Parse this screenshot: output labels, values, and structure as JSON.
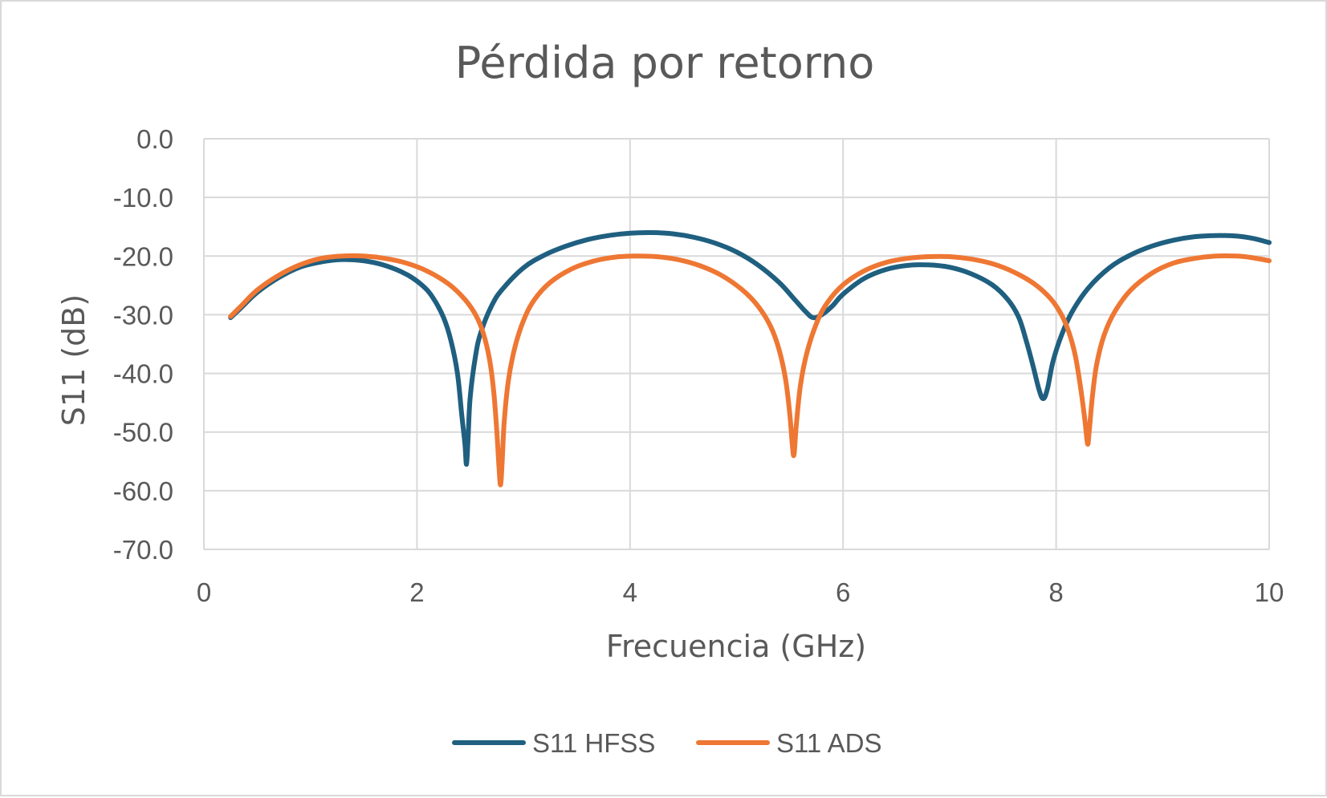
{
  "chart_data": {
    "type": "line",
    "title": "Pérdida por retorno",
    "xlabel": "Frecuencia (GHz)",
    "ylabel": "S11 (dB)",
    "xlim": [
      0,
      10
    ],
    "ylim": [
      -70,
      0
    ],
    "x_ticks": [
      {
        "value": 0,
        "label": "0"
      },
      {
        "value": 2,
        "label": "2"
      },
      {
        "value": 4,
        "label": "4"
      },
      {
        "value": 6,
        "label": "6"
      },
      {
        "value": 8,
        "label": "8"
      },
      {
        "value": 10,
        "label": "10"
      }
    ],
    "y_ticks": [
      {
        "value": 0,
        "label": "0.0"
      },
      {
        "value": -10,
        "label": "-10.0"
      },
      {
        "value": -20,
        "label": "-20.0"
      },
      {
        "value": -30,
        "label": "-30.0"
      },
      {
        "value": -40,
        "label": "-40.0"
      },
      {
        "value": -50,
        "label": "-50.0"
      },
      {
        "value": -60,
        "label": "-60.0"
      },
      {
        "value": -70,
        "label": "-70.0"
      }
    ],
    "grid": true,
    "legend_position": "bottom-center",
    "series": [
      {
        "name": "S11 HFSS",
        "color": "#1f5f80",
        "points": [
          [
            0.25,
            -30.5
          ],
          [
            0.35,
            -28.8
          ],
          [
            0.5,
            -26.2
          ],
          [
            0.7,
            -23.7
          ],
          [
            0.9,
            -21.9
          ],
          [
            1.1,
            -21.0
          ],
          [
            1.3,
            -20.6
          ],
          [
            1.5,
            -20.8
          ],
          [
            1.7,
            -21.6
          ],
          [
            1.9,
            -23.1
          ],
          [
            2.05,
            -25.0
          ],
          [
            2.15,
            -27.1
          ],
          [
            2.25,
            -30.5
          ],
          [
            2.32,
            -34.5
          ],
          [
            2.38,
            -40.0
          ],
          [
            2.42,
            -47.0
          ],
          [
            2.45,
            -52.0
          ],
          [
            2.465,
            -55.5
          ],
          [
            2.48,
            -51.0
          ],
          [
            2.5,
            -44.0
          ],
          [
            2.55,
            -37.0
          ],
          [
            2.6,
            -33.0
          ],
          [
            2.7,
            -28.5
          ],
          [
            2.8,
            -25.7
          ],
          [
            3.0,
            -22.0
          ],
          [
            3.2,
            -19.8
          ],
          [
            3.4,
            -18.3
          ],
          [
            3.6,
            -17.2
          ],
          [
            3.8,
            -16.5
          ],
          [
            4.0,
            -16.1
          ],
          [
            4.2,
            -16.0
          ],
          [
            4.4,
            -16.2
          ],
          [
            4.6,
            -16.8
          ],
          [
            4.8,
            -17.8
          ],
          [
            5.0,
            -19.3
          ],
          [
            5.2,
            -21.5
          ],
          [
            5.4,
            -24.5
          ],
          [
            5.55,
            -27.5
          ],
          [
            5.65,
            -29.5
          ],
          [
            5.72,
            -30.5
          ],
          [
            5.8,
            -30.0
          ],
          [
            5.9,
            -28.5
          ],
          [
            6.0,
            -26.5
          ],
          [
            6.2,
            -23.8
          ],
          [
            6.4,
            -22.3
          ],
          [
            6.6,
            -21.6
          ],
          [
            6.8,
            -21.5
          ],
          [
            7.0,
            -21.9
          ],
          [
            7.2,
            -23.0
          ],
          [
            7.4,
            -24.9
          ],
          [
            7.55,
            -27.5
          ],
          [
            7.65,
            -30.5
          ],
          [
            7.72,
            -34.5
          ],
          [
            7.78,
            -38.5
          ],
          [
            7.84,
            -42.8
          ],
          [
            7.88,
            -44.3
          ],
          [
            7.92,
            -42.5
          ],
          [
            7.97,
            -38.0
          ],
          [
            8.05,
            -33.5
          ],
          [
            8.15,
            -29.5
          ],
          [
            8.3,
            -25.5
          ],
          [
            8.5,
            -22.0
          ],
          [
            8.7,
            -19.8
          ],
          [
            8.9,
            -18.3
          ],
          [
            9.1,
            -17.3
          ],
          [
            9.3,
            -16.7
          ],
          [
            9.5,
            -16.5
          ],
          [
            9.7,
            -16.6
          ],
          [
            9.85,
            -17.0
          ],
          [
            10.0,
            -17.7
          ]
        ]
      },
      {
        "name": "S11 ADS",
        "color": "#ee7733",
        "points": [
          [
            0.25,
            -30.3
          ],
          [
            0.35,
            -28.5
          ],
          [
            0.5,
            -25.8
          ],
          [
            0.7,
            -23.3
          ],
          [
            0.9,
            -21.5
          ],
          [
            1.1,
            -20.4
          ],
          [
            1.3,
            -20.0
          ],
          [
            1.5,
            -20.0
          ],
          [
            1.7,
            -20.4
          ],
          [
            1.9,
            -21.2
          ],
          [
            2.1,
            -22.6
          ],
          [
            2.3,
            -24.8
          ],
          [
            2.45,
            -27.4
          ],
          [
            2.55,
            -30.0
          ],
          [
            2.62,
            -33.0
          ],
          [
            2.68,
            -37.5
          ],
          [
            2.72,
            -43.0
          ],
          [
            2.75,
            -50.0
          ],
          [
            2.77,
            -56.0
          ],
          [
            2.785,
            -59.0
          ],
          [
            2.8,
            -55.0
          ],
          [
            2.82,
            -48.0
          ],
          [
            2.86,
            -41.0
          ],
          [
            2.92,
            -35.5
          ],
          [
            3.0,
            -31.0
          ],
          [
            3.1,
            -27.5
          ],
          [
            3.25,
            -24.5
          ],
          [
            3.45,
            -22.2
          ],
          [
            3.65,
            -20.9
          ],
          [
            3.85,
            -20.2
          ],
          [
            4.05,
            -20.0
          ],
          [
            4.25,
            -20.1
          ],
          [
            4.45,
            -20.6
          ],
          [
            4.65,
            -21.6
          ],
          [
            4.85,
            -23.2
          ],
          [
            5.05,
            -25.7
          ],
          [
            5.2,
            -28.5
          ],
          [
            5.32,
            -32.0
          ],
          [
            5.4,
            -36.0
          ],
          [
            5.46,
            -41.0
          ],
          [
            5.5,
            -47.0
          ],
          [
            5.525,
            -52.5
          ],
          [
            5.54,
            -53.8
          ],
          [
            5.56,
            -49.0
          ],
          [
            5.6,
            -42.0
          ],
          [
            5.66,
            -36.5
          ],
          [
            5.75,
            -31.5
          ],
          [
            5.85,
            -28.0
          ],
          [
            6.0,
            -24.9
          ],
          [
            6.2,
            -22.5
          ],
          [
            6.4,
            -21.1
          ],
          [
            6.6,
            -20.4
          ],
          [
            6.8,
            -20.1
          ],
          [
            7.0,
            -20.1
          ],
          [
            7.2,
            -20.5
          ],
          [
            7.4,
            -21.3
          ],
          [
            7.6,
            -22.7
          ],
          [
            7.8,
            -24.8
          ],
          [
            7.95,
            -27.3
          ],
          [
            8.05,
            -30.0
          ],
          [
            8.12,
            -33.0
          ],
          [
            8.18,
            -37.0
          ],
          [
            8.23,
            -42.5
          ],
          [
            8.27,
            -48.0
          ],
          [
            8.295,
            -52.0
          ],
          [
            8.31,
            -50.0
          ],
          [
            8.34,
            -44.0
          ],
          [
            8.38,
            -38.5
          ],
          [
            8.45,
            -33.5
          ],
          [
            8.55,
            -29.5
          ],
          [
            8.7,
            -25.8
          ],
          [
            8.9,
            -22.9
          ],
          [
            9.1,
            -21.2
          ],
          [
            9.3,
            -20.4
          ],
          [
            9.5,
            -20.0
          ],
          [
            9.7,
            -20.0
          ],
          [
            9.85,
            -20.3
          ],
          [
            10.0,
            -20.8
          ]
        ]
      }
    ]
  }
}
